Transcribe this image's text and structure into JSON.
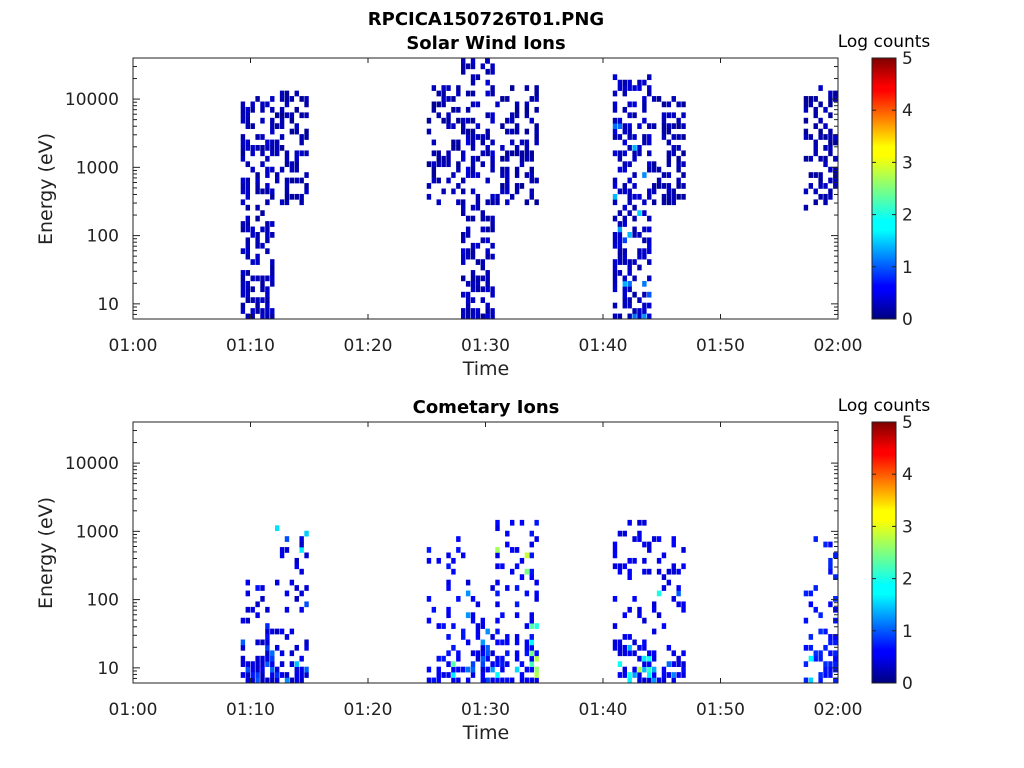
{
  "figure_title": "RPCICA150726T01.PNG",
  "chart_data": [
    {
      "type": "heatmap",
      "title": "Solar Wind Ions",
      "xlabel": "Time",
      "ylabel": "Energy (eV)",
      "x_ticks": [
        "01:00",
        "01:10",
        "01:20",
        "01:30",
        "01:40",
        "01:50",
        "02:00"
      ],
      "x_range_minutes": [
        0,
        60
      ],
      "y_scale": "log",
      "y_ticks": [
        "10",
        "100",
        "1000",
        "10000"
      ],
      "y_range_eV": [
        6,
        40000
      ],
      "colorbar": {
        "label": "Log counts",
        "ticks": [
          "0",
          "1",
          "2",
          "3",
          "4",
          "5"
        ],
        "range": [
          0,
          5
        ],
        "colormap": "jet"
      },
      "grid": false,
      "clusters": [
        {
          "t_start": 9.0,
          "t_end": 12.0,
          "e_low": 6,
          "e_high": 12000,
          "mean_log_counts": 0.15,
          "peak_log_counts": 0.4
        },
        {
          "t_start": 12.0,
          "t_end": 15.0,
          "e_low": 300,
          "e_high": 15000,
          "mean_log_counts": 0.1,
          "peak_log_counts": 0.3
        },
        {
          "t_start": 25.0,
          "t_end": 28.0,
          "e_low": 300,
          "e_high": 15000,
          "mean_log_counts": 0.1,
          "peak_log_counts": 0.3
        },
        {
          "t_start": 28.0,
          "t_end": 31.0,
          "e_low": 6,
          "e_high": 40000,
          "mean_log_counts": 0.15,
          "peak_log_counts": 0.5
        },
        {
          "t_start": 31.0,
          "t_end": 34.5,
          "e_low": 300,
          "e_high": 15000,
          "mean_log_counts": 0.1,
          "peak_log_counts": 0.3
        },
        {
          "t_start": 41.0,
          "t_end": 44.0,
          "e_low": 6,
          "e_high": 25000,
          "mean_log_counts": 0.2,
          "peak_log_counts": 1.8
        },
        {
          "t_start": 44.0,
          "t_end": 47.0,
          "e_low": 300,
          "e_high": 12000,
          "mean_log_counts": 0.1,
          "peak_log_counts": 0.3
        },
        {
          "t_start": 57.0,
          "t_end": 59.8,
          "e_low": 250,
          "e_high": 15000,
          "mean_log_counts": 0.1,
          "peak_log_counts": 0.3
        }
      ]
    },
    {
      "type": "heatmap",
      "title": "Cometary Ions",
      "xlabel": "Time",
      "ylabel": "Energy (eV)",
      "x_ticks": [
        "01:00",
        "01:10",
        "01:20",
        "01:30",
        "01:40",
        "01:50",
        "02:00"
      ],
      "x_range_minutes": [
        0,
        60
      ],
      "y_scale": "log",
      "y_ticks": [
        "10",
        "100",
        "1000",
        "10000"
      ],
      "y_range_eV": [
        6,
        40000
      ],
      "colorbar": {
        "label": "Log counts",
        "ticks": [
          "0",
          "1",
          "2",
          "3",
          "4",
          "5"
        ],
        "range": [
          0,
          5
        ],
        "colormap": "jet"
      },
      "grid": false,
      "clusters": [
        {
          "t_start": 9.0,
          "t_end": 12.5,
          "e_low": 6,
          "e_high": 200,
          "mean_log_counts": 0.3,
          "peak_log_counts": 1.2
        },
        {
          "t_start": 12.0,
          "t_end": 15.0,
          "e_low": 6,
          "e_high": 1200,
          "mean_log_counts": 0.3,
          "peak_log_counts": 1.8
        },
        {
          "t_start": 25.0,
          "t_end": 28.5,
          "e_low": 6,
          "e_high": 900,
          "mean_log_counts": 0.5,
          "peak_log_counts": 2.6
        },
        {
          "t_start": 28.5,
          "t_end": 31.0,
          "e_low": 6,
          "e_high": 200,
          "mean_log_counts": 0.4,
          "peak_log_counts": 1.5
        },
        {
          "t_start": 31.0,
          "t_end": 34.5,
          "e_low": 6,
          "e_high": 1500,
          "mean_log_counts": 0.5,
          "peak_log_counts": 2.9
        },
        {
          "t_start": 41.0,
          "t_end": 44.0,
          "e_low": 6,
          "e_high": 1500,
          "mean_log_counts": 0.4,
          "peak_log_counts": 2.8
        },
        {
          "t_start": 44.0,
          "t_end": 47.0,
          "e_low": 6,
          "e_high": 800,
          "mean_log_counts": 0.4,
          "peak_log_counts": 2.0
        },
        {
          "t_start": 57.0,
          "t_end": 60.0,
          "e_low": 6,
          "e_high": 800,
          "mean_log_counts": 0.6,
          "peak_log_counts": 2.8
        }
      ]
    }
  ]
}
